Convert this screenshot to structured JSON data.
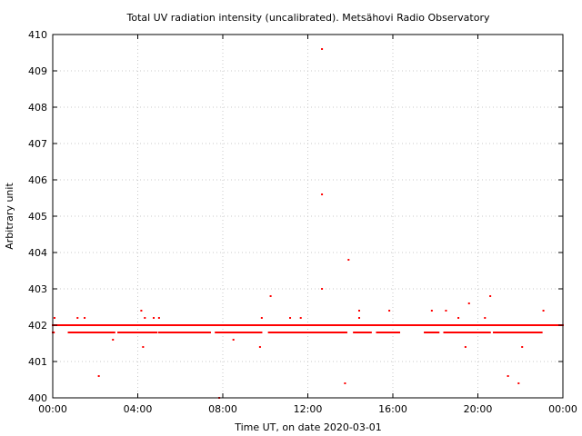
{
  "chart_data": {
    "type": "scatter",
    "title": "Total UV radiation intensity (uncalibrated). Metsähovi Radio Observatory",
    "xlabel": "Time UT, on date 2020-03-01",
    "ylabel": "Arbitrary unit",
    "xlim": [
      "00:00",
      "00:00"
    ],
    "ylim": [
      400,
      410
    ],
    "x_ticks": [
      "00:00",
      "04:00",
      "08:00",
      "12:00",
      "16:00",
      "20:00",
      "00:00"
    ],
    "y_ticks": [
      "400",
      "401",
      "402",
      "403",
      "404",
      "405",
      "406",
      "407",
      "408",
      "409",
      "410"
    ],
    "grid": true,
    "marker_color": "#ff0000",
    "baseline_value": 402.0,
    "secondary_band_value": 401.8,
    "secondary_band_segments": [
      [
        "00:00",
        "00:05"
      ],
      [
        "00:45",
        "02:55"
      ],
      [
        "03:05",
        "04:55"
      ],
      [
        "05:00",
        "07:25"
      ],
      [
        "07:40",
        "09:50"
      ],
      [
        "10:10",
        "13:50"
      ],
      [
        "14:10",
        "15:00"
      ],
      [
        "15:15",
        "16:20"
      ],
      [
        "17:30",
        "18:10"
      ],
      [
        "18:25",
        "20:35"
      ],
      [
        "20:45",
        "23:00"
      ]
    ],
    "outliers": [
      {
        "x": "00:05",
        "y": 402.2
      },
      {
        "x": "01:10",
        "y": 402.2
      },
      {
        "x": "01:30",
        "y": 402.2
      },
      {
        "x": "02:10",
        "y": 400.6
      },
      {
        "x": "02:50",
        "y": 401.6
      },
      {
        "x": "04:10",
        "y": 402.4
      },
      {
        "x": "04:15",
        "y": 401.4
      },
      {
        "x": "04:20",
        "y": 402.2
      },
      {
        "x": "04:45",
        "y": 402.2
      },
      {
        "x": "05:00",
        "y": 402.2
      },
      {
        "x": "07:50",
        "y": 400.0
      },
      {
        "x": "08:30",
        "y": 401.6
      },
      {
        "x": "09:45",
        "y": 401.4
      },
      {
        "x": "09:50",
        "y": 402.2
      },
      {
        "x": "10:15",
        "y": 402.8
      },
      {
        "x": "11:10",
        "y": 402.2
      },
      {
        "x": "11:40",
        "y": 402.2
      },
      {
        "x": "12:40",
        "y": 409.6
      },
      {
        "x": "12:40",
        "y": 405.6
      },
      {
        "x": "12:40",
        "y": 403.0
      },
      {
        "x": "13:45",
        "y": 400.4
      },
      {
        "x": "13:55",
        "y": 403.8
      },
      {
        "x": "14:25",
        "y": 402.4
      },
      {
        "x": "14:25",
        "y": 402.2
      },
      {
        "x": "15:50",
        "y": 402.4
      },
      {
        "x": "17:50",
        "y": 402.4
      },
      {
        "x": "18:30",
        "y": 402.4
      },
      {
        "x": "19:05",
        "y": 402.2
      },
      {
        "x": "19:25",
        "y": 401.4
      },
      {
        "x": "19:35",
        "y": 402.6
      },
      {
        "x": "20:20",
        "y": 402.2
      },
      {
        "x": "20:35",
        "y": 402.8
      },
      {
        "x": "21:25",
        "y": 400.6
      },
      {
        "x": "21:55",
        "y": 400.4
      },
      {
        "x": "22:05",
        "y": 401.4
      },
      {
        "x": "23:05",
        "y": 402.4
      }
    ]
  }
}
